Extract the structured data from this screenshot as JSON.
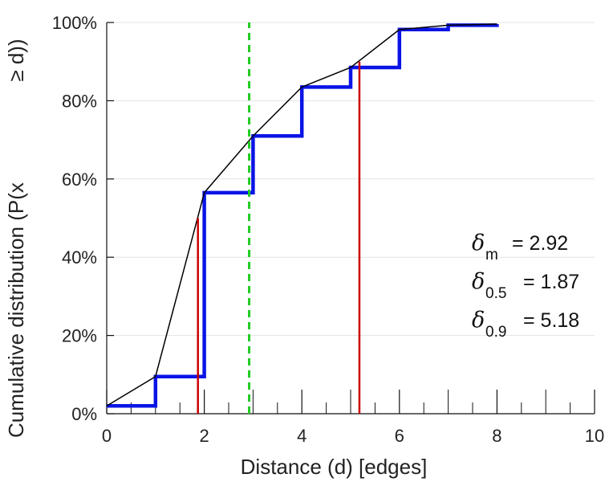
{
  "chart_data": {
    "type": "line",
    "title": "",
    "xlabel": "Distance (d) [edges]",
    "ylabel_line1": "Cumulative distribution (P(x",
    "ylabel_line2": "≥ d))",
    "xlim": [
      0,
      10
    ],
    "ylim": [
      0,
      100
    ],
    "x_ticks": [
      0,
      2,
      4,
      6,
      8,
      10
    ],
    "x_tick_labels": [
      "0",
      "2",
      "4",
      "6",
      "8",
      "10"
    ],
    "x_minor_ticks": [
      0.5,
      1,
      1.5,
      2.5,
      3,
      3.5,
      4.5,
      5,
      5.5,
      6.5,
      7,
      7.5,
      8.5,
      9,
      9.5
    ],
    "y_ticks": [
      0,
      20,
      40,
      60,
      80,
      100
    ],
    "y_tick_labels": [
      "0%",
      "20%",
      "40%",
      "60%",
      "80%",
      "100%"
    ],
    "grid": "horizontal",
    "series": [
      {
        "name": "step-cdf",
        "style": "step",
        "color": "#0a14e6",
        "x": [
          0,
          1,
          2,
          3,
          4,
          5,
          6,
          7,
          8
        ],
        "values": [
          2,
          9.5,
          56.5,
          71,
          83.5,
          88.5,
          98.2,
          99.3,
          99.6
        ]
      },
      {
        "name": "interpolated-cdf",
        "style": "line",
        "color": "#000000",
        "x": [
          0,
          1,
          2,
          3,
          4,
          5,
          6,
          7,
          8
        ],
        "values": [
          2,
          9.5,
          56.5,
          71,
          83.5,
          88.5,
          98.2,
          99.3,
          99.6
        ]
      }
    ],
    "markers": [
      {
        "name": "delta-0.5-line",
        "x": 1.87,
        "y": 50,
        "color": "#cc0000",
        "style": "solid"
      },
      {
        "name": "delta-0.9-line",
        "x": 5.18,
        "y": 90,
        "color": "#cc0000",
        "style": "solid"
      },
      {
        "name": "delta-m-line",
        "x": 2.92,
        "y": 100,
        "color": "#22cc22",
        "style": "dashed"
      }
    ],
    "annotations": [
      {
        "symbol": "δ",
        "subscript": "m",
        "text": "= 2.92"
      },
      {
        "symbol": "δ",
        "subscript": "0.5",
        "text": "= 1.87"
      },
      {
        "symbol": "δ",
        "subscript": "0.9",
        "text": "= 5.18"
      }
    ]
  }
}
